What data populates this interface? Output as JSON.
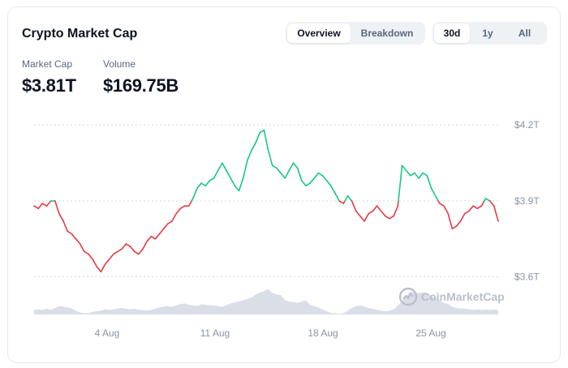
{
  "header": {
    "title": "Crypto Market Cap",
    "view_tabs": [
      "Overview",
      "Breakdown"
    ],
    "view_active": "Overview",
    "range_tabs": [
      "30d",
      "1y",
      "All"
    ],
    "range_active": "30d"
  },
  "stats": {
    "market_cap_label": "Market Cap",
    "market_cap_value": "$3.81T",
    "volume_label": "Volume",
    "volume_value": "$169.75B"
  },
  "watermark": "CoinMarketCap",
  "colors": {
    "up": "#16c784",
    "down": "#ea3943",
    "volume_fill": "#d9dee7",
    "grid": "#d7dce4",
    "watermark": "#b9bfcb"
  },
  "chart_data": {
    "type": "line",
    "x_ticks": [
      "4 Aug",
      "11 Aug",
      "18 Aug",
      "25 Aug"
    ],
    "y_ticks": [
      "$4.2T",
      "$3.9T",
      "$3.6T"
    ],
    "y_tick_values": [
      4.2,
      3.9,
      3.6
    ],
    "ylim": [
      3.56,
      4.22
    ],
    "baseline": 3.9,
    "series": [
      {
        "values": [
          3.88,
          3.87,
          3.89,
          3.88,
          3.9,
          3.9,
          3.85,
          3.82,
          3.78,
          3.77,
          3.75,
          3.73,
          3.7,
          3.69,
          3.67,
          3.64,
          3.62,
          3.65,
          3.67,
          3.69,
          3.7,
          3.71,
          3.73,
          3.72,
          3.7,
          3.69,
          3.71,
          3.74,
          3.76,
          3.75,
          3.77,
          3.79,
          3.81,
          3.82,
          3.85,
          3.87,
          3.88,
          3.88,
          3.91,
          3.95,
          3.97,
          3.96,
          3.98,
          3.99,
          4.02,
          4.05,
          4.02,
          3.99,
          3.96,
          3.94,
          3.99,
          4.06,
          4.1,
          4.13,
          4.17,
          4.18,
          4.1,
          4.04,
          4.03,
          4.01,
          3.99,
          4.02,
          4.05,
          4.03,
          3.98,
          3.96,
          3.97,
          3.99,
          4.01,
          4.0,
          3.98,
          3.96,
          3.93,
          3.9,
          3.89,
          3.92,
          3.9,
          3.86,
          3.84,
          3.82,
          3.85,
          3.86,
          3.88,
          3.86,
          3.84,
          3.83,
          3.84,
          3.88,
          4.04,
          4.02,
          4.0,
          4.01,
          3.99,
          4.01,
          4.0,
          3.95,
          3.92,
          3.89,
          3.88,
          3.85,
          3.79,
          3.8,
          3.82,
          3.85,
          3.86,
          3.88,
          3.87,
          3.88,
          3.91,
          3.9,
          3.88,
          3.82
        ]
      }
    ],
    "volume": [
      0.07,
      0.08,
      0.07,
      0.09,
      0.07,
      0.1,
      0.13,
      0.12,
      0.11,
      0.09,
      0.06,
      0.03,
      0.02,
      0.02,
      0.04,
      0.05,
      0.06,
      0.08,
      0.07,
      0.08,
      0.09,
      0.1,
      0.09,
      0.08,
      0.09,
      0.07,
      0.07,
      0.06,
      0.07,
      0.09,
      0.11,
      0.12,
      0.13,
      0.12,
      0.14,
      0.16,
      0.17,
      0.15,
      0.14,
      0.13,
      0.16,
      0.15,
      0.14,
      0.14,
      0.13,
      0.12,
      0.14,
      0.17,
      0.19,
      0.2,
      0.22,
      0.24,
      0.26,
      0.31,
      0.34,
      0.36,
      0.39,
      0.33,
      0.31,
      0.3,
      0.22,
      0.2,
      0.19,
      0.18,
      0.2,
      0.22,
      0.15,
      0.13,
      0.11,
      0.08,
      0.05,
      0.02,
      0.02,
      0.01,
      0.02,
      0.06,
      0.1,
      0.13,
      0.14,
      0.12,
      0.1,
      0.09,
      0.07,
      0.06,
      0.05,
      0.06,
      0.08,
      0.14,
      0.2,
      0.29,
      0.35,
      0.34,
      0.33,
      0.34,
      0.33,
      0.29,
      0.25,
      0.22,
      0.18,
      0.16,
      0.12,
      0.1,
      0.09,
      0.09,
      0.08,
      0.07,
      0.08,
      0.07,
      0.08,
      0.07,
      0.08,
      0.07
    ]
  }
}
